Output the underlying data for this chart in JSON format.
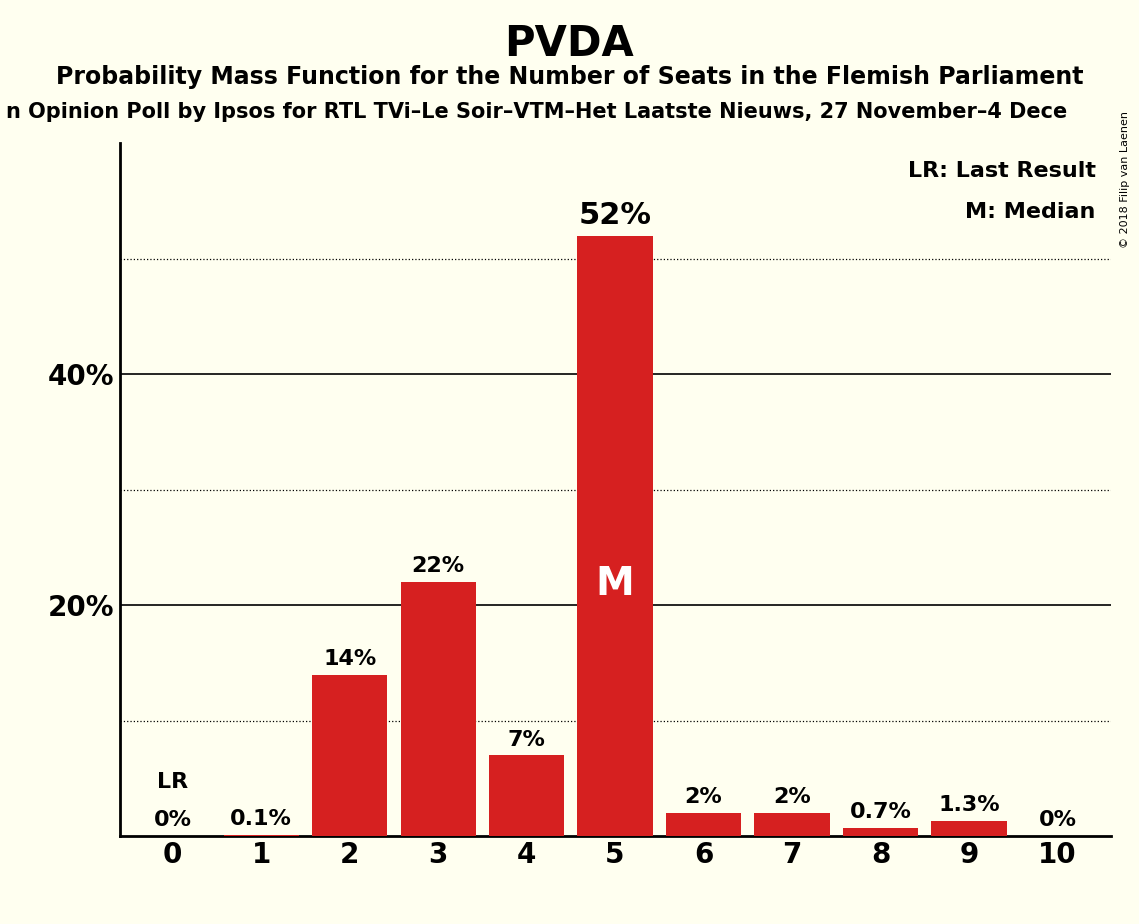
{
  "title": "PVDA",
  "subtitle": "Probability Mass Function for the Number of Seats in the Flemish Parliament",
  "subtitle2": "n Opinion Poll by Ipsos for RTL TVi–Le Soir–VTM–Het Laatste Nieuws, 27 November–4 Dece",
  "copyright": "© 2018 Filip van Laenen",
  "categories": [
    0,
    1,
    2,
    3,
    4,
    5,
    6,
    7,
    8,
    9,
    10
  ],
  "values": [
    0.0,
    0.001,
    0.14,
    0.22,
    0.07,
    0.52,
    0.02,
    0.02,
    0.007,
    0.013,
    0.0
  ],
  "labels": [
    "0%",
    "0.1%",
    "14%",
    "22%",
    "7%",
    "52%",
    "2%",
    "2%",
    "0.7%",
    "1.3%",
    "0%"
  ],
  "bar_color": "#d62020",
  "background_color": "#fffff0",
  "ylim": [
    0,
    0.6
  ],
  "solid_yticks": [
    0.2,
    0.4
  ],
  "dotted_yticks": [
    0.1,
    0.3,
    0.5
  ],
  "ytick_labels_pos": [
    0.2,
    0.4
  ],
  "ytick_labels_val": [
    "20%",
    "40%"
  ],
  "median_seat": 5,
  "median_label": "M",
  "lr_seat": 0,
  "lr_label": "LR",
  "legend_lr": "LR: Last Result",
  "legend_m": "M: Median",
  "title_fontsize": 30,
  "subtitle_fontsize": 17,
  "subtitle2_fontsize": 15,
  "label_fontsize": 16,
  "tick_fontsize": 20,
  "legend_fontsize": 16,
  "median_label_fontsize": 28
}
